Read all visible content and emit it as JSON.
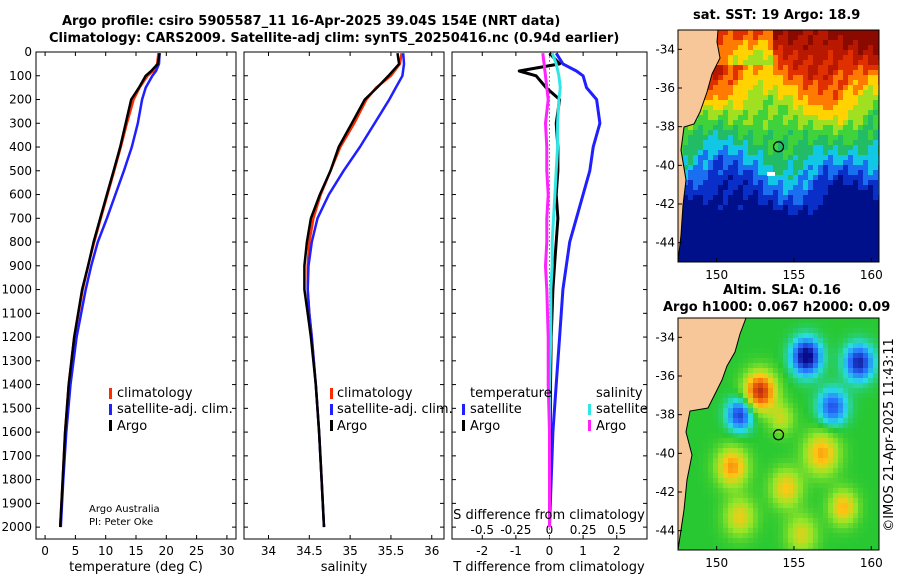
{
  "figure": {
    "title_line1": "Argo profile: csiro 5905587_11 16-Apr-2025 39.04S 154E (NRT data)",
    "title_line2": "Climatology: CARS2009. Satellite-adj clim: synTS_20250416.nc (0.94d earlier)",
    "credit_line1": "Argo Australia",
    "credit_line2": "PI: Peter Oke",
    "watermark": "©IMOS 21-Apr-2025 11:43:11"
  },
  "colors": {
    "climatology": "#ff2a00",
    "satellite": "#1f1fff",
    "argo": "#000000",
    "sat_salinity": "#33e6e6",
    "argo_salinity": "#ff22ff",
    "land": "#f7c79a"
  },
  "chart_data": [
    {
      "type": "line",
      "name": "temperature",
      "xlabel": "temperature (deg C)",
      "xlim": [
        -1.5,
        31.5
      ],
      "xticks": [
        0,
        5,
        10,
        15,
        20,
        25,
        30
      ],
      "ylim": [
        0,
        2050
      ],
      "yticks": [
        0,
        100,
        200,
        300,
        400,
        500,
        600,
        700,
        800,
        900,
        1000,
        1100,
        1200,
        1300,
        1400,
        1500,
        1600,
        1700,
        1800,
        1900,
        2000
      ],
      "legend": [
        "climatology",
        "satellite-adj. clim.",
        "Argo"
      ],
      "series": [
        {
          "name": "climatology",
          "depth": [
            5,
            50,
            80,
            100,
            150,
            200,
            300,
            400,
            500,
            600,
            700,
            800,
            900,
            1000,
            1200,
            1400,
            1600,
            1800,
            2000
          ],
          "values": [
            18.7,
            18.5,
            17.8,
            16.9,
            15.6,
            14.6,
            13.5,
            12.5,
            11.4,
            10.3,
            9.2,
            8.1,
            7.1,
            6.2,
            4.8,
            3.9,
            3.3,
            2.9,
            2.5
          ]
        },
        {
          "name": "satellite-adj. clim.",
          "depth": [
            5,
            50,
            80,
            100,
            150,
            200,
            300,
            400,
            500,
            600,
            700,
            800,
            900,
            1000,
            1200,
            1400,
            1600,
            1800,
            2000
          ],
          "values": [
            18.9,
            18.8,
            18.3,
            17.7,
            16.6,
            16.0,
            15.3,
            14.3,
            13.0,
            11.6,
            10.2,
            8.7,
            7.6,
            6.7,
            5.2,
            4.2,
            3.5,
            3.0,
            2.6
          ]
        },
        {
          "name": "Argo",
          "depth": [
            5,
            50,
            80,
            100,
            150,
            200,
            300,
            400,
            500,
            600,
            700,
            800,
            900,
            1000,
            1200,
            1400,
            1600,
            1800,
            2000
          ],
          "values": [
            18.9,
            18.6,
            17.5,
            16.6,
            15.5,
            14.2,
            13.3,
            12.4,
            11.3,
            10.2,
            9.1,
            8.0,
            7.1,
            6.1,
            4.8,
            3.9,
            3.3,
            2.9,
            2.5
          ]
        }
      ]
    },
    {
      "type": "line",
      "name": "salinity",
      "xlabel": "salinity",
      "xlim": [
        33.7,
        36.15
      ],
      "xticks": [
        34,
        34.5,
        35,
        35.5,
        36
      ],
      "ylim": [
        0,
        2050
      ],
      "legend": [
        "climatology",
        "satellite-adj. clim.",
        "Argo"
      ],
      "series": [
        {
          "name": "climatology",
          "depth": [
            5,
            50,
            100,
            150,
            200,
            300,
            400,
            500,
            600,
            700,
            800,
            900,
            1000,
            1100,
            1200,
            1400,
            1600,
            1800,
            2000
          ],
          "values": [
            35.63,
            35.61,
            35.5,
            35.32,
            35.2,
            35.05,
            34.88,
            34.76,
            34.64,
            34.55,
            34.5,
            34.48,
            34.48,
            34.5,
            34.53,
            34.58,
            34.62,
            34.65,
            34.68
          ]
        },
        {
          "name": "satellite-adj. clim.",
          "depth": [
            5,
            50,
            100,
            150,
            200,
            300,
            400,
            500,
            600,
            700,
            800,
            900,
            1000,
            1100,
            1200,
            1400,
            1600,
            1800,
            2000
          ],
          "values": [
            35.65,
            35.66,
            35.64,
            35.56,
            35.48,
            35.3,
            35.12,
            34.92,
            34.74,
            34.6,
            34.53,
            34.49,
            34.48,
            34.5,
            34.53,
            34.58,
            34.62,
            34.65,
            34.68
          ]
        },
        {
          "name": "Argo",
          "depth": [
            5,
            50,
            100,
            150,
            200,
            300,
            400,
            500,
            600,
            700,
            800,
            900,
            1000,
            1100,
            1200,
            1400,
            1600,
            1800,
            2000
          ],
          "values": [
            35.58,
            35.6,
            35.47,
            35.33,
            35.18,
            35.02,
            34.86,
            34.76,
            34.63,
            34.52,
            34.47,
            34.44,
            34.44,
            34.48,
            34.52,
            34.58,
            34.62,
            34.65,
            34.68
          ]
        }
      ]
    },
    {
      "type": "line",
      "name": "difference",
      "xlabel": "T difference from climatology",
      "top_label": "S difference from climatology",
      "xlim": [
        -2.9,
        2.9
      ],
      "xticks": [
        -2,
        -1,
        0,
        1,
        2
      ],
      "top_ticks": [
        "-0.5",
        "-0.25",
        "0",
        "0.25",
        "0.5"
      ],
      "top_tick_values": [
        -0.5,
        -0.25,
        0,
        0.25,
        0.5
      ],
      "s_scale": 4,
      "ylim": [
        0,
        2050
      ],
      "legend_temperature_title": "temperature",
      "legend_salinity_title": "salinity",
      "legend_temperature": [
        "satellite",
        "Argo"
      ],
      "legend_salinity": [
        "satellite",
        "Argo"
      ],
      "series": [
        {
          "name": "T satellite",
          "depth": [
            5,
            50,
            80,
            100,
            150,
            200,
            300,
            400,
            500,
            600,
            700,
            800,
            900,
            1000,
            1200,
            1400,
            1600,
            1800,
            2000
          ],
          "values": [
            0.2,
            0.4,
            0.8,
            1.0,
            1.1,
            1.4,
            1.5,
            1.3,
            1.2,
            1.0,
            0.8,
            0.6,
            0.5,
            0.4,
            0.3,
            0.2,
            0.1,
            0.05,
            0.0
          ]
        },
        {
          "name": "T Argo",
          "depth": [
            5,
            50,
            80,
            100,
            150,
            200,
            300,
            400,
            500,
            600,
            700,
            800,
            900,
            1000,
            1200,
            1400,
            1600,
            1800,
            2000
          ],
          "values": [
            0.0,
            0.3,
            -0.9,
            -0.4,
            -0.1,
            0.3,
            0.2,
            0.25,
            0.25,
            0.2,
            0.25,
            0.2,
            0.15,
            0.1,
            0.05,
            0.03,
            0.02,
            0.0,
            0.0
          ]
        },
        {
          "name": "S satellite",
          "depth": [
            5,
            50,
            100,
            150,
            200,
            300,
            400,
            500,
            600,
            700,
            800,
            900,
            1000,
            1200,
            1400,
            1600,
            1800,
            2000
          ],
          "values": [
            0.02,
            0.05,
            0.07,
            0.08,
            0.07,
            0.06,
            0.06,
            0.05,
            0.04,
            0.03,
            0.02,
            0.02,
            0.01,
            0.01,
            0.0,
            0.0,
            0.0,
            0.0
          ]
        },
        {
          "name": "S Argo",
          "depth": [
            5,
            50,
            100,
            150,
            200,
            300,
            400,
            500,
            600,
            700,
            800,
            900,
            1000,
            1200,
            1400,
            1600,
            1800,
            2000
          ],
          "values": [
            -0.05,
            -0.04,
            -0.03,
            -0.02,
            -0.01,
            -0.03,
            -0.02,
            -0.02,
            -0.01,
            -0.02,
            -0.02,
            -0.03,
            -0.02,
            -0.01,
            -0.01,
            0.0,
            0.0,
            0.0
          ]
        }
      ]
    },
    {
      "type": "heatmap",
      "name": "satellite SST map",
      "title": "sat. SST: 19 Argo: 18.9",
      "xlim": [
        147.5,
        160.5
      ],
      "ylim": [
        -45,
        -33
      ],
      "xticks": [
        150,
        155,
        160
      ],
      "yticks": [
        -34,
        -36,
        -38,
        -40,
        -42,
        -44
      ],
      "argo_position": [
        154,
        -39.04
      ]
    },
    {
      "type": "heatmap",
      "name": "altimetry SLA map",
      "title_line1": "Altim. SLA: 0.16",
      "title_line2": "Argo h1000: 0.067 h2000: 0.09",
      "xlim": [
        147.5,
        160.5
      ],
      "ylim": [
        -45,
        -33
      ],
      "xticks": [
        150,
        155,
        160
      ],
      "yticks": [
        -34,
        -36,
        -38,
        -40,
        -42,
        -44
      ],
      "argo_position": [
        154,
        -39.04
      ]
    }
  ]
}
